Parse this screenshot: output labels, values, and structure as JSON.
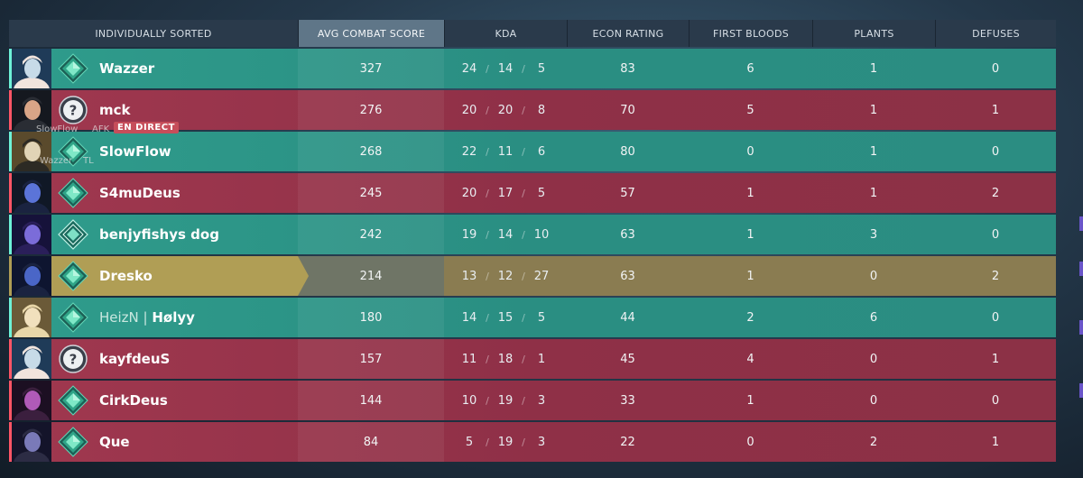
{
  "header": {
    "player": "INDIVIDUALLY SORTED",
    "acs": "AVG COMBAT SCORE",
    "kda": "KDA",
    "econ": "ECON RATING",
    "fb": "FIRST BLOODS",
    "plants": "PLANTS",
    "defuses": "DEFUSES"
  },
  "overlay": {
    "afk_name": "SlowFlow",
    "afk_label": "AFK",
    "live_label": "EN DIRECT",
    "tl_name": "Wazzer",
    "tl_label": "TL"
  },
  "colors": {
    "team": "#2f9c8c",
    "enemy": "#9a344c",
    "self": "#b09e55"
  },
  "rows": [
    {
      "name": "Wazzer",
      "tag": "",
      "team": "team",
      "rank": "platinum",
      "acs": "327",
      "k": "24",
      "d": "14",
      "a": "5",
      "econ": "83",
      "fb": "6",
      "plants": "1",
      "defuses": "0"
    },
    {
      "name": "mck",
      "tag": "",
      "team": "enemy",
      "rank": "unknown",
      "acs": "276",
      "k": "20",
      "d": "20",
      "a": "8",
      "econ": "70",
      "fb": "5",
      "plants": "1",
      "defuses": "1"
    },
    {
      "name": "SlowFlow",
      "tag": "",
      "team": "team",
      "rank": "platinum",
      "acs": "268",
      "k": "22",
      "d": "11",
      "a": "6",
      "econ": "80",
      "fb": "0",
      "plants": "1",
      "defuses": "0"
    },
    {
      "name": "S4muDeus",
      "tag": "",
      "team": "enemy",
      "rank": "platinum",
      "acs": "245",
      "k": "20",
      "d": "17",
      "a": "5",
      "econ": "57",
      "fb": "1",
      "plants": "1",
      "defuses": "2"
    },
    {
      "name": "benjyfishys dog",
      "tag": "",
      "team": "team",
      "rank": "diamond",
      "acs": "242",
      "k": "19",
      "d": "14",
      "a": "10",
      "econ": "63",
      "fb": "1",
      "plants": "3",
      "defuses": "0"
    },
    {
      "name": "Dresko",
      "tag": "",
      "team": "self",
      "rank": "platinum",
      "acs": "214",
      "k": "13",
      "d": "12",
      "a": "27",
      "econ": "63",
      "fb": "1",
      "plants": "0",
      "defuses": "2"
    },
    {
      "name": "Hølyy",
      "tag": "HeizN | ",
      "team": "team",
      "rank": "platinum",
      "acs": "180",
      "k": "14",
      "d": "15",
      "a": "5",
      "econ": "44",
      "fb": "2",
      "plants": "6",
      "defuses": "0"
    },
    {
      "name": "kayfdeuS",
      "tag": "",
      "team": "enemy",
      "rank": "unknown",
      "acs": "157",
      "k": "11",
      "d": "18",
      "a": "1",
      "econ": "45",
      "fb": "4",
      "plants": "0",
      "defuses": "1"
    },
    {
      "name": "CirkDeus",
      "tag": "",
      "team": "enemy",
      "rank": "platinum",
      "acs": "144",
      "k": "10",
      "d": "19",
      "a": "3",
      "econ": "33",
      "fb": "1",
      "plants": "0",
      "defuses": "0"
    },
    {
      "name": "Que",
      "tag": "",
      "team": "enemy",
      "rank": "platinum",
      "acs": "84",
      "k": "5",
      "d": "19",
      "a": "3",
      "econ": "22",
      "fb": "0",
      "plants": "2",
      "defuses": "1"
    }
  ]
}
